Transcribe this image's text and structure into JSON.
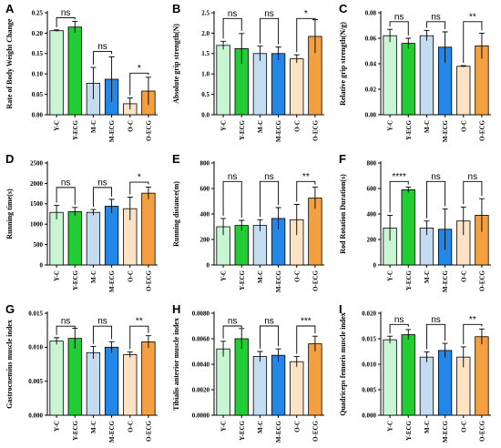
{
  "colors": [
    "#c8f5d2",
    "#22cc33",
    "#c4dcf2",
    "#2287e6",
    "#fde2c4",
    "#f4a040"
  ],
  "chart_data": [
    {
      "letter": "A",
      "type": "bar",
      "ylabel": "Rate of Body Weight Change",
      "categories": [
        "Y-C",
        "Y-ECG",
        "M-C",
        "M-ECG",
        "O-C",
        "O-ECG"
      ],
      "values": [
        0.206,
        0.215,
        0.077,
        0.087,
        0.027,
        0.058
      ],
      "errors": [
        0.002,
        0.014,
        0.039,
        0.055,
        0.014,
        0.034
      ],
      "ylim": [
        0,
        0.25
      ],
      "yticks": [
        "0.00",
        "0.05",
        "0.10",
        "0.15",
        "0.20",
        "0.25"
      ],
      "comparisons": [
        {
          "pair": [
            0,
            1
          ],
          "label": "ns",
          "y": 0.238
        },
        {
          "pair": [
            2,
            3
          ],
          "label": "ns",
          "y": 0.155
        },
        {
          "pair": [
            4,
            5
          ],
          "label": "*",
          "y": 0.102
        }
      ]
    },
    {
      "letter": "B",
      "type": "bar",
      "ylabel": "Absolute grip strength(N)",
      "categories": [
        "Y-C",
        "Y-ECG",
        "M-C",
        "M-ECG",
        "O-C",
        "O-ECG"
      ],
      "values": [
        1.7,
        1.62,
        1.5,
        1.5,
        1.37,
        1.92
      ],
      "errors": [
        0.1,
        0.37,
        0.18,
        0.16,
        0.1,
        0.41
      ],
      "ylim": [
        0,
        2.5
      ],
      "yticks": [
        "0.0",
        "0.5",
        "1.0",
        "1.5",
        "2.0",
        "2.5"
      ],
      "comparisons": [
        {
          "pair": [
            0,
            1
          ],
          "label": "ns",
          "y": 2.36
        },
        {
          "pair": [
            2,
            3
          ],
          "label": "ns",
          "y": 2.36
        },
        {
          "pair": [
            4,
            5
          ],
          "label": "*",
          "y": 2.36
        }
      ]
    },
    {
      "letter": "C",
      "type": "bar",
      "ylabel": "Relative grip strength(N/g)",
      "categories": [
        "Y-C",
        "Y-ECG",
        "M-C",
        "M-ECG",
        "O-C",
        "O-ECG"
      ],
      "values": [
        0.062,
        0.056,
        0.062,
        0.053,
        0.038,
        0.054
      ],
      "errors": [
        0.005,
        0.004,
        0.004,
        0.012,
        0.0005,
        0.01
      ],
      "ylim": [
        0,
        0.08
      ],
      "yticks": [
        "0.00",
        "0.02",
        "0.04",
        "0.06",
        "0.08"
      ],
      "comparisons": [
        {
          "pair": [
            0,
            1
          ],
          "label": "ns",
          "y": 0.073
        },
        {
          "pair": [
            2,
            3
          ],
          "label": "ns",
          "y": 0.073
        },
        {
          "pair": [
            4,
            5
          ],
          "label": "**",
          "y": 0.073
        }
      ]
    },
    {
      "letter": "D",
      "type": "bar",
      "ylabel": "Running time(s)",
      "categories": [
        "Y-C",
        "Y-ECG",
        "M-C",
        "M-ECG",
        "O-C",
        "O-ECG"
      ],
      "values": [
        1290,
        1310,
        1290,
        1440,
        1380,
        1760
      ],
      "errors": [
        170,
        100,
        70,
        170,
        280,
        150
      ],
      "ylim": [
        0,
        2500
      ],
      "yticks": [
        "0",
        "500",
        "1000",
        "1500",
        "2000",
        "2500"
      ],
      "comparisons": [
        {
          "pair": [
            0,
            1
          ],
          "label": "ns",
          "y": 1900
        },
        {
          "pair": [
            2,
            3
          ],
          "label": "ns",
          "y": 1900
        },
        {
          "pair": [
            4,
            5
          ],
          "label": "*",
          "y": 2030
        }
      ]
    },
    {
      "letter": "E",
      "type": "bar",
      "ylabel": "Running distance(m)",
      "categories": [
        "Y-C",
        "Y-ECG",
        "M-C",
        "M-ECG",
        "O-C",
        "O-ECG"
      ],
      "values": [
        300,
        310,
        310,
        365,
        355,
        525
      ],
      "errors": [
        65,
        40,
        45,
        85,
        120,
        85
      ],
      "ylim": [
        0,
        800
      ],
      "yticks": [
        "0",
        "200",
        "400",
        "600",
        "800"
      ],
      "comparisons": [
        {
          "pair": [
            0,
            1
          ],
          "label": "ns",
          "y": 655
        },
        {
          "pair": [
            2,
            3
          ],
          "label": "ns",
          "y": 655
        },
        {
          "pair": [
            4,
            5
          ],
          "label": "**",
          "y": 655
        }
      ]
    },
    {
      "letter": "F",
      "type": "bar",
      "ylabel": "Rod Rotation Duration(s)",
      "categories": [
        "Y-C",
        "Y-ECG",
        "M-C",
        "M-ECG",
        "O-C",
        "O-ECG"
      ],
      "values": [
        290,
        590,
        290,
        280,
        345,
        390
      ],
      "errors": [
        100,
        20,
        55,
        160,
        110,
        130
      ],
      "ylim": [
        0,
        800
      ],
      "yticks": [
        "0",
        "200",
        "400",
        "600",
        "800"
      ],
      "comparisons": [
        {
          "pair": [
            0,
            1
          ],
          "label": "****",
          "y": 655
        },
        {
          "pair": [
            2,
            3
          ],
          "label": "ns",
          "y": 655
        },
        {
          "pair": [
            4,
            5
          ],
          "label": "ns",
          "y": 655
        }
      ]
    },
    {
      "letter": "G",
      "type": "bar",
      "ylabel": "Gastrocnemius muscle index",
      "categories": [
        "Y-C",
        "Y-ECG",
        "M-C",
        "M-ECG",
        "O-C",
        "O-ECG"
      ],
      "values": [
        0.0109,
        0.0113,
        0.0092,
        0.01,
        0.0089,
        0.0108
      ],
      "errors": [
        0.0005,
        0.0015,
        0.0009,
        0.0008,
        0.0004,
        0.0009
      ],
      "ylim": [
        0,
        0.015
      ],
      "yticks": [
        "0.000",
        "0.005",
        "0.010",
        "0.015"
      ],
      "comparisons": [
        {
          "pair": [
            0,
            1
          ],
          "label": "ns",
          "y": 0.0131
        },
        {
          "pair": [
            2,
            3
          ],
          "label": "ns",
          "y": 0.0131
        },
        {
          "pair": [
            4,
            5
          ],
          "label": "**",
          "y": 0.0131
        }
      ]
    },
    {
      "letter": "H",
      "type": "bar",
      "ylabel": "Tibialis anterior muscle index",
      "categories": [
        "Y-C",
        "Y-ECG",
        "M-C",
        "M-ECG",
        "O-C",
        "O-ECG"
      ],
      "values": [
        0.0052,
        0.006,
        0.0046,
        0.0047,
        0.0042,
        0.0056
      ],
      "errors": [
        0.0006,
        0.0008,
        0.0004,
        0.0005,
        0.0004,
        0.0006
      ],
      "ylim": [
        0,
        0.008
      ],
      "yticks": [
        "0.0000",
        "0.0020",
        "0.0040",
        "0.0060",
        "0.0080"
      ],
      "comparisons": [
        {
          "pair": [
            0,
            1
          ],
          "label": "ns",
          "y": 0.007
        },
        {
          "pair": [
            2,
            3
          ],
          "label": "ns",
          "y": 0.007
        },
        {
          "pair": [
            4,
            5
          ],
          "label": "***",
          "y": 0.007
        }
      ]
    },
    {
      "letter": "I",
      "type": "bar",
      "ylabel": "Quadriceps femoris muscle index",
      "categories": [
        "Y-C",
        "Y-ECG",
        "M-C",
        "M-ECG",
        "O-C",
        "O-ECG"
      ],
      "values": [
        0.0148,
        0.0158,
        0.0114,
        0.0127,
        0.0114,
        0.0154
      ],
      "errors": [
        0.0007,
        0.001,
        0.001,
        0.0014,
        0.002,
        0.0015
      ],
      "ylim": [
        0,
        0.02
      ],
      "yticks": [
        "0.000",
        "0.005",
        "0.010",
        "0.015",
        "0.020"
      ],
      "comparisons": [
        {
          "pair": [
            0,
            1
          ],
          "label": "ns",
          "y": 0.0178
        },
        {
          "pair": [
            2,
            3
          ],
          "label": "ns",
          "y": 0.0178
        },
        {
          "pair": [
            4,
            5
          ],
          "label": "**",
          "y": 0.0178
        }
      ]
    }
  ]
}
